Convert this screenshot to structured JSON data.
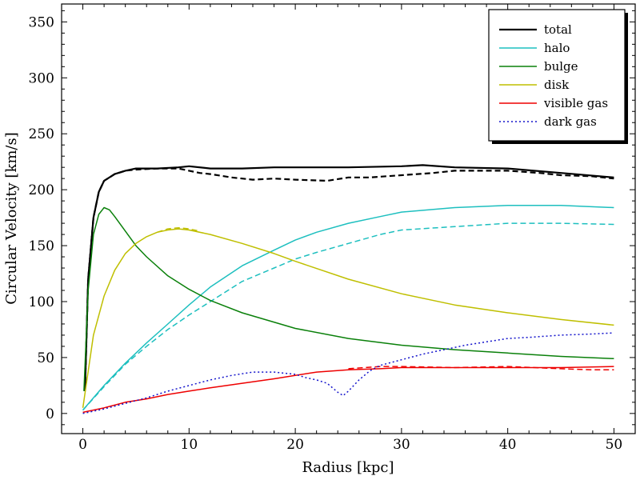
{
  "chart_data": {
    "type": "line",
    "title": "",
    "xlabel": "Radius [kpc]",
    "ylabel": "Circular Velocity [km/s]",
    "xlim": [
      -2,
      52
    ],
    "ylim": [
      -18,
      366
    ],
    "xticks": [
      0,
      10,
      20,
      30,
      40,
      50
    ],
    "yticks": [
      0,
      50,
      100,
      150,
      200,
      250,
      300,
      350
    ],
    "grid": false,
    "legend_position": "top-right",
    "series": [
      {
        "name": "total",
        "color": "#000000",
        "style": "solid",
        "width": 2.2,
        "legend": true,
        "x": [
          0.2,
          0.5,
          1,
          1.5,
          2,
          3,
          4,
          5,
          7,
          9,
          10,
          12,
          15,
          18,
          20,
          25,
          30,
          32,
          35,
          40,
          45,
          50
        ],
        "y": [
          20,
          120,
          175,
          198,
          208,
          214,
          217,
          219,
          219,
          220,
          221,
          219,
          219,
          220,
          220,
          220,
          221,
          222,
          220,
          219,
          215,
          211
        ]
      },
      {
        "name": "total (dashed)",
        "color": "#000000",
        "style": "dashed",
        "width": 2.2,
        "legend": false,
        "x": [
          0.2,
          0.5,
          1,
          1.5,
          2,
          3,
          4,
          5,
          7,
          9,
          10,
          11,
          12,
          14,
          16,
          18,
          20,
          23,
          25,
          27,
          30,
          33,
          35,
          38,
          40,
          43,
          45,
          48,
          50
        ],
        "y": [
          20,
          120,
          175,
          198,
          208,
          214,
          217,
          218,
          219,
          219,
          217,
          215,
          214,
          211,
          209,
          210,
          209,
          208,
          211,
          211,
          213,
          215,
          217,
          217,
          217,
          215,
          213,
          212,
          210
        ]
      },
      {
        "name": "halo",
        "color": "#1dbfbf",
        "style": "solid",
        "width": 1.5,
        "legend": true,
        "x": [
          0,
          2,
          4,
          6,
          8,
          10,
          12,
          15,
          18,
          20,
          22,
          25,
          28,
          30,
          35,
          40,
          45,
          50
        ],
        "y": [
          3,
          25,
          45,
          63,
          80,
          97,
          113,
          132,
          146,
          155,
          162,
          170,
          176,
          180,
          184,
          186,
          186,
          184
        ]
      },
      {
        "name": "halo (dashed)",
        "color": "#1dbfbf",
        "style": "dashed",
        "width": 1.5,
        "legend": false,
        "x": [
          0,
          2,
          4,
          6,
          8,
          10,
          12,
          15,
          18,
          20,
          22,
          25,
          28,
          30,
          35,
          40,
          45,
          50
        ],
        "y": [
          3,
          24,
          44,
          60,
          75,
          88,
          100,
          118,
          130,
          138,
          144,
          152,
          160,
          164,
          167,
          170,
          170,
          169
        ]
      },
      {
        "name": "bulge",
        "color": "#0a800a",
        "style": "solid",
        "width": 1.5,
        "legend": true,
        "x": [
          0.1,
          0.5,
          1,
          1.5,
          2,
          2.5,
          3,
          4,
          5,
          6,
          8,
          10,
          12,
          15,
          20,
          25,
          30,
          35,
          40,
          45,
          50
        ],
        "y": [
          20,
          110,
          160,
          178,
          184,
          182,
          176,
          163,
          150,
          140,
          123,
          111,
          101,
          90,
          76,
          67,
          61,
          57,
          54,
          51,
          49
        ]
      },
      {
        "name": "disk",
        "color": "#bfbf00",
        "style": "solid",
        "width": 1.5,
        "legend": true,
        "x": [
          0,
          1,
          2,
          3,
          4,
          5,
          6,
          7,
          8,
          9,
          10,
          12,
          15,
          18,
          20,
          25,
          30,
          35,
          40,
          45,
          50
        ],
        "y": [
          5,
          70,
          105,
          128,
          143,
          152,
          158,
          162,
          164,
          165,
          164,
          160,
          152,
          143,
          136,
          120,
          107,
          97,
          90,
          84,
          79
        ]
      },
      {
        "name": "disk (dashed)",
        "color": "#bfbf00",
        "style": "dashed",
        "width": 1.5,
        "legend": false,
        "x": [
          7,
          8,
          9,
          10,
          11
        ],
        "y": [
          162,
          165,
          166,
          165,
          163
        ]
      },
      {
        "name": "visible gas",
        "color": "#ee0000",
        "style": "solid",
        "width": 1.5,
        "legend": true,
        "x": [
          0,
          2,
          4,
          6,
          8,
          10,
          12,
          15,
          18,
          20,
          22,
          25,
          28,
          30,
          35,
          40,
          45,
          50
        ],
        "y": [
          1,
          5,
          10,
          13,
          17,
          20,
          23,
          27,
          31,
          34,
          37,
          39,
          40,
          41,
          41,
          41,
          41,
          42
        ]
      },
      {
        "name": "visible gas (dashed)",
        "color": "#ee0000",
        "style": "dashed",
        "width": 1.5,
        "legend": false,
        "x": [
          25,
          28,
          30,
          35,
          40,
          45,
          48,
          50
        ],
        "y": [
          40,
          42,
          42,
          41,
          42,
          40,
          39,
          39
        ]
      },
      {
        "name": "dark gas",
        "color": "#1414cc",
        "style": "dotted",
        "width": 1.5,
        "legend": true,
        "x": [
          0,
          2,
          4,
          6,
          8,
          10,
          12,
          14,
          16,
          17,
          18,
          19,
          20,
          21,
          22,
          23,
          24,
          24.5,
          25,
          26,
          27,
          28,
          30,
          32,
          34,
          36,
          38,
          40,
          42,
          45,
          48,
          50
        ],
        "y": [
          0,
          4,
          9,
          14,
          20,
          25,
          30,
          34,
          37,
          37,
          37,
          36,
          35,
          32,
          30,
          27,
          19,
          16,
          20,
          30,
          38,
          43,
          48,
          53,
          57,
          61,
          64,
          67,
          68,
          70,
          71,
          72
        ]
      }
    ]
  }
}
